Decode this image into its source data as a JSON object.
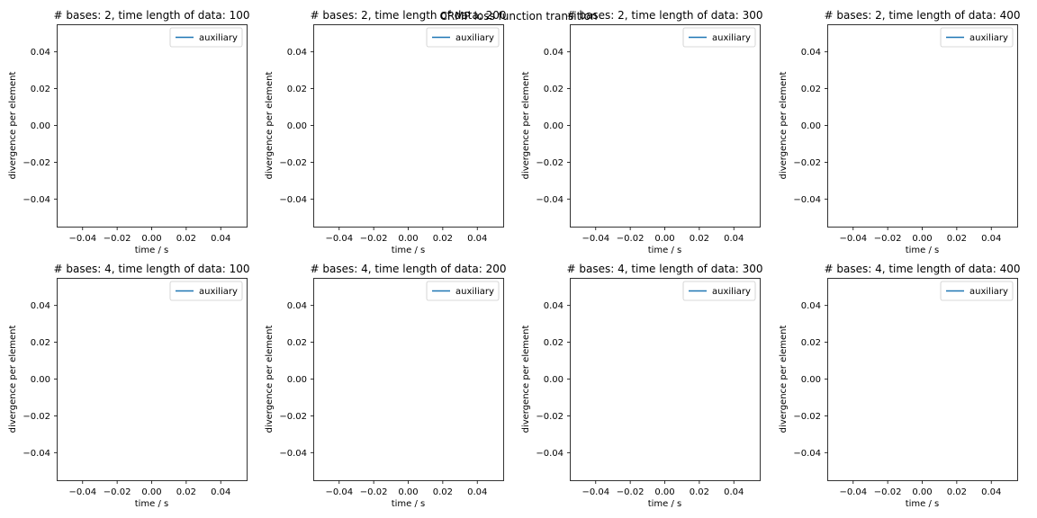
{
  "figure": {
    "suptitle": "CRMP loss function transition"
  },
  "chart_data": [
    {
      "type": "line",
      "title": "# bases: 2, time length of data: 100",
      "xlabel": "time / s",
      "ylabel": "divergence per element",
      "xlim": [
        -0.055,
        0.055
      ],
      "ylim": [
        -0.055,
        0.055
      ],
      "xticks": [
        -0.04,
        -0.02,
        0.0,
        0.02,
        0.04
      ],
      "xtick_labels": [
        "−0.04",
        "−0.02",
        "0.00",
        "0.02",
        "0.04"
      ],
      "yticks": [
        0.04,
        0.02,
        0.0,
        -0.02,
        -0.04
      ],
      "ytick_labels": [
        "0.04",
        "0.02",
        "0.00",
        "−0.02",
        "−0.04"
      ],
      "series": [
        {
          "name": "auxiliary",
          "color": "#1f77b4",
          "x": [],
          "y": []
        }
      ],
      "legend": "top-right",
      "grid": false
    },
    {
      "type": "line",
      "title": "# bases: 2, time length of data: 200",
      "xlabel": "time / s",
      "ylabel": "divergence per element",
      "xlim": [
        -0.055,
        0.055
      ],
      "ylim": [
        -0.055,
        0.055
      ],
      "xticks": [
        -0.04,
        -0.02,
        0.0,
        0.02,
        0.04
      ],
      "xtick_labels": [
        "−0.04",
        "−0.02",
        "0.00",
        "0.02",
        "0.04"
      ],
      "yticks": [
        0.04,
        0.02,
        0.0,
        -0.02,
        -0.04
      ],
      "ytick_labels": [
        "0.04",
        "0.02",
        "0.00",
        "−0.02",
        "−0.04"
      ],
      "series": [
        {
          "name": "auxiliary",
          "color": "#1f77b4",
          "x": [],
          "y": []
        }
      ],
      "legend": "top-right",
      "grid": false
    },
    {
      "type": "line",
      "title": "# bases: 2, time length of data: 300",
      "xlabel": "time / s",
      "ylabel": "divergence per element",
      "xlim": [
        -0.055,
        0.055
      ],
      "ylim": [
        -0.055,
        0.055
      ],
      "xticks": [
        -0.04,
        -0.02,
        0.0,
        0.02,
        0.04
      ],
      "xtick_labels": [
        "−0.04",
        "−0.02",
        "0.00",
        "0.02",
        "0.04"
      ],
      "yticks": [
        0.04,
        0.02,
        0.0,
        -0.02,
        -0.04
      ],
      "ytick_labels": [
        "0.04",
        "0.02",
        "0.00",
        "−0.02",
        "−0.04"
      ],
      "series": [
        {
          "name": "auxiliary",
          "color": "#1f77b4",
          "x": [],
          "y": []
        }
      ],
      "legend": "top-right",
      "grid": false
    },
    {
      "type": "line",
      "title": "# bases: 2, time length of data: 400",
      "xlabel": "time / s",
      "ylabel": "divergence per element",
      "xlim": [
        -0.055,
        0.055
      ],
      "ylim": [
        -0.055,
        0.055
      ],
      "xticks": [
        -0.04,
        -0.02,
        0.0,
        0.02,
        0.04
      ],
      "xtick_labels": [
        "−0.04",
        "−0.02",
        "0.00",
        "0.02",
        "0.04"
      ],
      "yticks": [
        0.04,
        0.02,
        0.0,
        -0.02,
        -0.04
      ],
      "ytick_labels": [
        "0.04",
        "0.02",
        "0.00",
        "−0.02",
        "−0.04"
      ],
      "series": [
        {
          "name": "auxiliary",
          "color": "#1f77b4",
          "x": [],
          "y": []
        }
      ],
      "legend": "top-right",
      "grid": false
    },
    {
      "type": "line",
      "title": "# bases: 4, time length of data: 100",
      "xlabel": "time / s",
      "ylabel": "divergence per element",
      "xlim": [
        -0.055,
        0.055
      ],
      "ylim": [
        -0.055,
        0.055
      ],
      "xticks": [
        -0.04,
        -0.02,
        0.0,
        0.02,
        0.04
      ],
      "xtick_labels": [
        "−0.04",
        "−0.02",
        "0.00",
        "0.02",
        "0.04"
      ],
      "yticks": [
        0.04,
        0.02,
        0.0,
        -0.02,
        -0.04
      ],
      "ytick_labels": [
        "0.04",
        "0.02",
        "0.00",
        "−0.02",
        "−0.04"
      ],
      "series": [
        {
          "name": "auxiliary",
          "color": "#1f77b4",
          "x": [],
          "y": []
        }
      ],
      "legend": "top-right",
      "grid": false
    },
    {
      "type": "line",
      "title": "# bases: 4, time length of data: 200",
      "xlabel": "time / s",
      "ylabel": "divergence per element",
      "xlim": [
        -0.055,
        0.055
      ],
      "ylim": [
        -0.055,
        0.055
      ],
      "xticks": [
        -0.04,
        -0.02,
        0.0,
        0.02,
        0.04
      ],
      "xtick_labels": [
        "−0.04",
        "−0.02",
        "0.00",
        "0.02",
        "0.04"
      ],
      "yticks": [
        0.04,
        0.02,
        0.0,
        -0.02,
        -0.04
      ],
      "ytick_labels": [
        "0.04",
        "0.02",
        "0.00",
        "−0.02",
        "−0.04"
      ],
      "series": [
        {
          "name": "auxiliary",
          "color": "#1f77b4",
          "x": [],
          "y": []
        }
      ],
      "legend": "top-right",
      "grid": false
    },
    {
      "type": "line",
      "title": "# bases: 4, time length of data: 300",
      "xlabel": "time / s",
      "ylabel": "divergence per element",
      "xlim": [
        -0.055,
        0.055
      ],
      "ylim": [
        -0.055,
        0.055
      ],
      "xticks": [
        -0.04,
        -0.02,
        0.0,
        0.02,
        0.04
      ],
      "xtick_labels": [
        "−0.04",
        "−0.02",
        "0.00",
        "0.02",
        "0.04"
      ],
      "yticks": [
        0.04,
        0.02,
        0.0,
        -0.02,
        -0.04
      ],
      "ytick_labels": [
        "0.04",
        "0.02",
        "0.00",
        "−0.02",
        "−0.04"
      ],
      "series": [
        {
          "name": "auxiliary",
          "color": "#1f77b4",
          "x": [],
          "y": []
        }
      ],
      "legend": "top-right",
      "grid": false
    },
    {
      "type": "line",
      "title": "# bases: 4, time length of data: 400",
      "xlabel": "time / s",
      "ylabel": "divergence per element",
      "xlim": [
        -0.055,
        0.055
      ],
      "ylim": [
        -0.055,
        0.055
      ],
      "xticks": [
        -0.04,
        -0.02,
        0.0,
        0.02,
        0.04
      ],
      "xtick_labels": [
        "−0.04",
        "−0.02",
        "0.00",
        "0.02",
        "0.04"
      ],
      "yticks": [
        0.04,
        0.02,
        0.0,
        -0.02,
        -0.04
      ],
      "ytick_labels": [
        "0.04",
        "0.02",
        "0.00",
        "−0.02",
        "−0.04"
      ],
      "series": [
        {
          "name": "auxiliary",
          "color": "#1f77b4",
          "x": [],
          "y": []
        }
      ],
      "legend": "top-right",
      "grid": false
    }
  ]
}
